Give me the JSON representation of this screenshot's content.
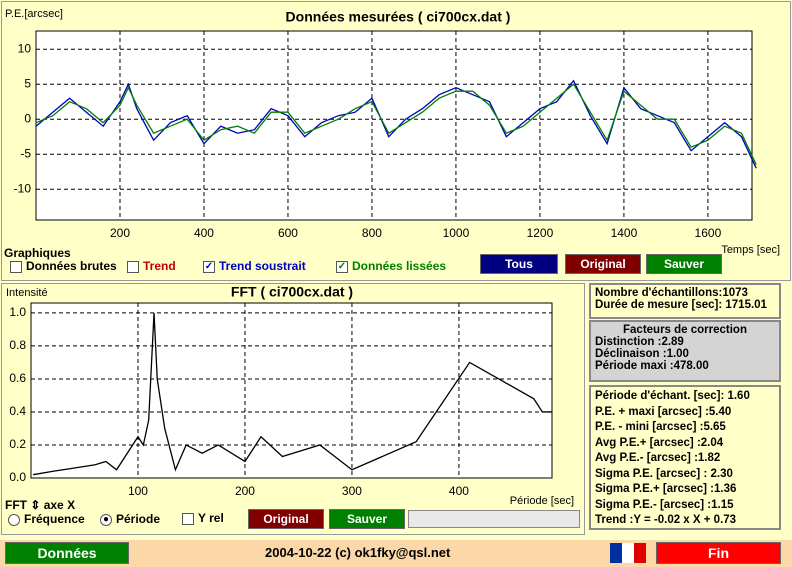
{
  "chart_data": [
    {
      "type": "line",
      "title": "Données mesurées ( ci700cx.dat )",
      "y_label": "P.E.[arcsec]",
      "x_label": "Temps [sec]",
      "x": [
        0,
        40,
        80,
        120,
        160,
        200,
        220,
        240,
        280,
        320,
        360,
        400,
        440,
        480,
        520,
        560,
        600,
        640,
        680,
        720,
        760,
        800,
        840,
        880,
        920,
        960,
        1000,
        1040,
        1080,
        1120,
        1160,
        1200,
        1240,
        1280,
        1320,
        1360,
        1400,
        1440,
        1480,
        1520,
        1560,
        1600,
        1640,
        1680,
        1715
      ],
      "series": [
        {
          "name": "Trend soustrait",
          "color": "#0000c0",
          "values": [
            -1,
            1,
            3,
            1,
            -1,
            2.5,
            5,
            1.5,
            -3,
            -0.5,
            0.5,
            -3.5,
            -1,
            -2,
            -1.5,
            1.5,
            0.5,
            -2.5,
            -0.5,
            0.5,
            1,
            3,
            -2.5,
            0,
            1.5,
            3.5,
            4.5,
            3.5,
            2.5,
            -2.5,
            -0.5,
            1.5,
            2.5,
            5.5,
            0.5,
            -3.5,
            4.5,
            1.5,
            0.5,
            -0.5,
            -4.5,
            -2.5,
            -0.5,
            -2.5,
            -7
          ]
        },
        {
          "name": "Données lissées",
          "color": "#008000",
          "values": [
            -0.5,
            0.5,
            2.5,
            1.5,
            -0.5,
            2,
            4.5,
            2,
            -2,
            -1,
            0,
            -3,
            -1.5,
            -1,
            -2,
            1,
            1,
            -2,
            -1,
            0,
            1.5,
            2.5,
            -2,
            -0.5,
            1,
            3,
            4,
            4,
            2,
            -2,
            -1,
            1,
            3,
            5,
            1,
            -3,
            4,
            2,
            0,
            0,
            -4,
            -3,
            -1,
            -2,
            -6.5
          ]
        }
      ],
      "xlim": [
        0,
        1705
      ],
      "ylim": [
        -14.4,
        12.6
      ],
      "xticks": [
        200,
        400,
        600,
        800,
        1000,
        1200,
        1400,
        1600
      ],
      "yticks": [
        -10,
        -5,
        0,
        5,
        10
      ],
      "grid": true
    },
    {
      "type": "line",
      "title": "FFT ( ci700cx.dat )",
      "y_label": "Intensité",
      "x_label": "Période [sec]",
      "x": [
        2,
        20,
        40,
        60,
        70,
        80,
        90,
        100,
        105,
        110,
        115,
        118,
        125,
        135,
        145,
        160,
        175,
        200,
        215,
        235,
        270,
        300,
        360,
        410,
        470,
        478,
        487
      ],
      "values": [
        0.02,
        0.04,
        0.06,
        0.08,
        0.1,
        0.05,
        0.15,
        0.25,
        0.2,
        0.35,
        1.0,
        0.6,
        0.3,
        0.05,
        0.2,
        0.15,
        0.2,
        0.1,
        0.25,
        0.13,
        0.2,
        0.05,
        0.22,
        0.7,
        0.48,
        0.4,
        0.4
      ],
      "color": "#000000",
      "xlim": [
        0,
        487
      ],
      "ylim": [
        0,
        1.06
      ],
      "xticks": [
        100,
        200,
        300,
        400
      ],
      "yticks": [
        {
          "value": 0,
          "label": "0.0"
        },
        0.2,
        0.4,
        0.6,
        0.8,
        {
          "value": 1,
          "label": "1.0"
        }
      ],
      "grid": true
    }
  ],
  "ui": {
    "graphiques": {
      "title": "Graphiques",
      "options": [
        "Données brutes",
        "Trend",
        "Trend soustrait",
        "Données lissées"
      ]
    },
    "buttons": [
      "Tous",
      "Original",
      "Sauver"
    ],
    "fft_axis": {
      "title": "FFT ⇕ axe X",
      "options": [
        "Fréquence",
        "Période"
      ],
      "yrel": "Y rel",
      "buttons": [
        "Original",
        "Sauver"
      ]
    },
    "info1": [
      "Nombre d'échantillons:1073",
      "Durée de mesure [sec]: 1715.01"
    ],
    "info2": {
      "title": "Facteurs de correction",
      "lines": [
        "Distinction :2.89",
        "Déclinaison :1.00",
        "Période maxi :478.00"
      ]
    },
    "info3": [
      "Période d'échant. [sec]: 1.60",
      "P.E. + maxi [arcsec] :5.40",
      "P.E. - mini [arcsec] :5.65",
      "Avg P.E.+ [arcsec] :2.04",
      "Avg P.E.- [arcsec] :1.82",
      "Sigma P.E. [arcsec] : 2.30",
      "Sigma P.E.+ [arcsec] :1.36",
      "Sigma P.E.- [arcsec] :1.15",
      "Trend :Y = -0.02 x X + 0.73"
    ],
    "footer": {
      "menu": "Données",
      "text": "2004-10-22 (c) ok1fky@qsl.net",
      "exit": "Fin"
    }
  }
}
